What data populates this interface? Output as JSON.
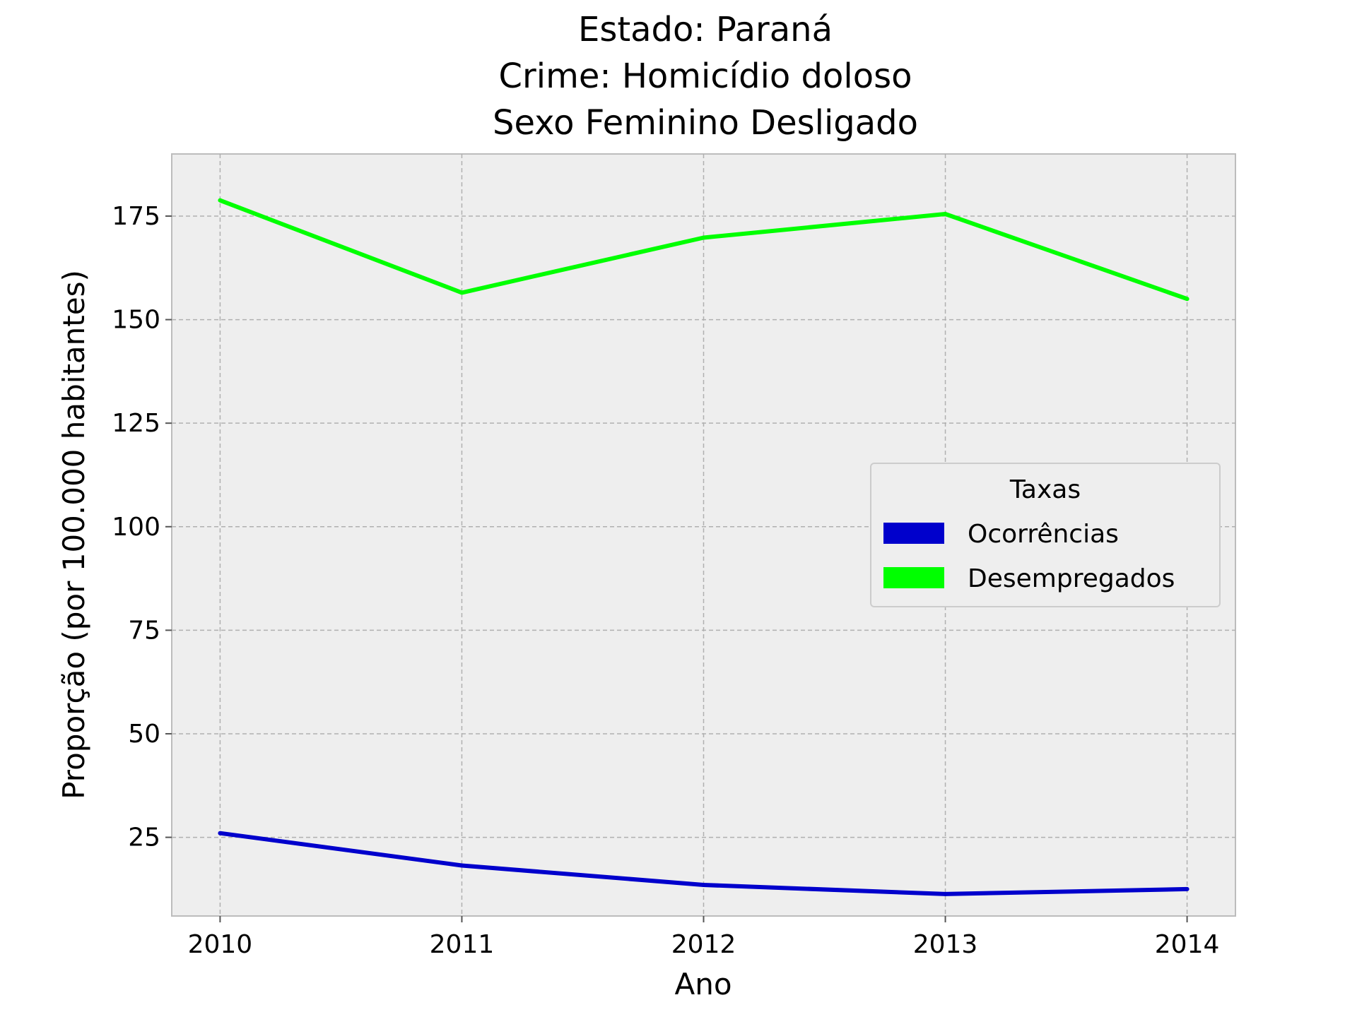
{
  "chart_data": {
    "type": "line",
    "title_lines": [
      "Estado: Paraná",
      "Crime: Homicídio doloso",
      "Sexo  Feminino   Desligado"
    ],
    "xlabel": "Ano",
    "ylabel": "Proporção (por 100.000 habitantes)",
    "x": [
      2010,
      2011,
      2012,
      2013,
      2014
    ],
    "xticks": [
      "2010",
      "2011",
      "2012",
      "2013",
      "2014"
    ],
    "yticks": [
      25,
      50,
      75,
      100,
      125,
      150,
      175
    ],
    "xlim": [
      2009.8,
      2014.2
    ],
    "ylim": [
      6,
      190
    ],
    "grid": true,
    "legend": {
      "title": "Taxas",
      "placement": "center-right"
    },
    "series": [
      {
        "name": "Ocorrências",
        "color": "#0000cc",
        "values": [
          26,
          18.2,
          13.5,
          11.3,
          12.5
        ]
      },
      {
        "name": "Desempregados",
        "color": "#00ff00",
        "values": [
          178.8,
          156.5,
          169.8,
          175.5,
          155
        ]
      }
    ]
  }
}
